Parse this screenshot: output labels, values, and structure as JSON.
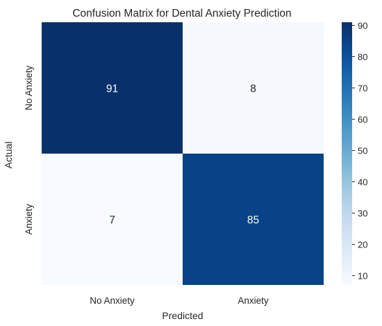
{
  "chart_data": {
    "type": "heatmap",
    "title": "Confusion Matrix for Dental Anxiety Prediction",
    "xlabel": "Predicted",
    "ylabel": "Actual",
    "x_categories": [
      "No Anxiety",
      "Anxiety"
    ],
    "y_categories": [
      "No Anxiety",
      "Anxiety"
    ],
    "values": [
      [
        91,
        8
      ],
      [
        7,
        85
      ]
    ],
    "colorbar": {
      "min": 7,
      "max": 91,
      "ticks": [
        10,
        20,
        30,
        40,
        50,
        60,
        70,
        80,
        90
      ],
      "colormap": "Blues"
    },
    "grid": false,
    "legend": "colorbar-right"
  },
  "colors": {
    "cmap_low": "#f7fbff",
    "cmap_stops": [
      "#f7fbff",
      "#deebf7",
      "#c6dbef",
      "#9ecae1",
      "#6baed6",
      "#4292c6",
      "#2171b5",
      "#08519c",
      "#08306b"
    ],
    "text_dark": "#262626",
    "text_on_dark": "#ffffff"
  }
}
